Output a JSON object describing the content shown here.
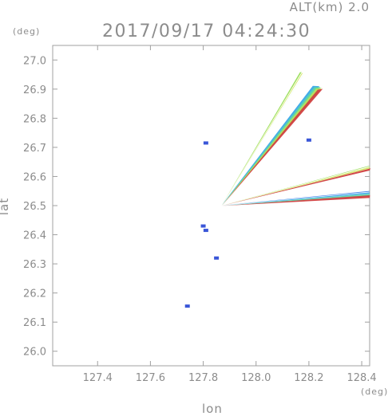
{
  "header": {
    "alt_label": "ALT(km) 2.0",
    "timestamp": "2017/09/17 04:24:30"
  },
  "chart_data": {
    "type": "scatter",
    "title": "2017/09/17 04:24:30",
    "xlabel": "lon",
    "ylabel": "lat",
    "x_unit": "(deg)",
    "y_unit": "(deg)",
    "xlim": [
      127.23,
      128.43
    ],
    "ylim": [
      25.95,
      27.05
    ],
    "x_ticks": [
      127.4,
      127.6,
      127.8,
      128.0,
      128.2,
      128.4
    ],
    "y_ticks": [
      26.0,
      26.1,
      26.2,
      26.3,
      26.4,
      26.5,
      26.6,
      26.7,
      26.8,
      26.9,
      27.0
    ],
    "x_tick_labels": [
      "127.4",
      "127.6",
      "127.8",
      "128.0",
      "128.2",
      "128.4"
    ],
    "y_tick_labels": [
      "26.0",
      "26.1",
      "26.2",
      "26.3",
      "26.4",
      "26.5",
      "26.6",
      "26.7",
      "26.8",
      "26.9",
      "27.0"
    ],
    "grid": false,
    "origin": {
      "lon": 127.87,
      "lat": 26.5
    },
    "beams": [
      {
        "tip_lon": 128.17,
        "tip_lat": 26.96,
        "end_lon": 128.18,
        "end_lat": 26.95,
        "colors": [
          "#9ade5a",
          "#cfe55a",
          "#5cd6a8"
        ]
      },
      {
        "tip_lon": 128.24,
        "tip_lat": 26.91,
        "end_lon": 128.23,
        "end_lat": 26.9,
        "colors": [
          "#3aa8e8",
          "#5cd6a8",
          "#b8e05a",
          "#d04040"
        ]
      },
      {
        "tip_lon": 128.43,
        "tip_lat": 26.64,
        "end_lon": 128.43,
        "end_lat": 26.62,
        "colors": [
          "#9ade5a",
          "#cfe55a",
          "#d04040"
        ]
      },
      {
        "tip_lon": 128.43,
        "tip_lat": 26.55,
        "end_lon": 128.43,
        "end_lat": 26.53,
        "colors": [
          "#3a7ae8",
          "#3aa8e8",
          "#5cd6a8",
          "#d04040"
        ]
      }
    ],
    "blobs": [
      {
        "lon": 127.81,
        "lat": 26.715,
        "color": "#3a56d8"
      },
      {
        "lon": 128.2,
        "lat": 26.725,
        "color": "#3a56d8"
      },
      {
        "lon": 127.8,
        "lat": 26.43,
        "color": "#3a56d8"
      },
      {
        "lon": 127.81,
        "lat": 26.415,
        "color": "#3a56d8"
      },
      {
        "lon": 127.74,
        "lat": 26.155,
        "color": "#3a56d8"
      },
      {
        "lon": 127.85,
        "lat": 26.32,
        "color": "#3a56d8"
      }
    ]
  }
}
